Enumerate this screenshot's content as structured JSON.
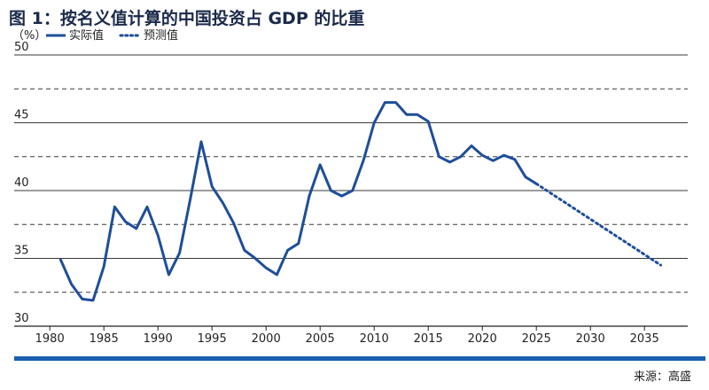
{
  "title": "图 1：按名义值计算的中国投资占 GDP 的比重",
  "unit_label": "（%）",
  "source": "来源：高盛",
  "colors": {
    "series": "#1f4e99",
    "grid_solid": "#3a3a3a",
    "grid_dashed": "#3a3a3a",
    "bottom_bar": "#1b5fb0"
  },
  "chart_data": {
    "type": "line",
    "title": "图 1：按名义值计算的中国投资占 GDP 的比重",
    "ylabel": "（%）",
    "xlabel": "",
    "xlim": [
      1979,
      2039
    ],
    "ylim": [
      30,
      50
    ],
    "y_ticks": [
      30,
      35,
      40,
      45,
      50
    ],
    "y_dashed_lines": [
      32.5,
      37.5,
      42.5,
      47.5
    ],
    "x_ticks": [
      1980,
      1985,
      1990,
      1995,
      2000,
      2005,
      2010,
      2015,
      2020,
      2025,
      2030,
      2035
    ],
    "grid": true,
    "legend_position": "top-left",
    "series": [
      {
        "name": "实际值",
        "style": "solid",
        "x": [
          1981,
          1982,
          1983,
          1984,
          1985,
          1986,
          1987,
          1988,
          1989,
          1990,
          1991,
          1992,
          1993,
          1994,
          1995,
          1996,
          1997,
          1998,
          1999,
          2000,
          2001,
          2002,
          2003,
          2004,
          2005,
          2006,
          2007,
          2008,
          2009,
          2010,
          2011,
          2012,
          2013,
          2014,
          2015,
          2016,
          2017,
          2018,
          2019,
          2020,
          2021,
          2022,
          2023,
          2024,
          2025
        ],
        "y": [
          34.9,
          33.1,
          32.0,
          31.9,
          34.4,
          38.8,
          37.7,
          37.2,
          38.8,
          36.7,
          33.8,
          35.4,
          39.4,
          43.6,
          40.3,
          39.1,
          37.6,
          35.6,
          35.0,
          34.3,
          33.8,
          35.6,
          36.1,
          39.6,
          41.9,
          40.0,
          39.6,
          40.0,
          42.2,
          45.0,
          46.5,
          46.5,
          45.6,
          45.6,
          45.1,
          42.5,
          42.1,
          42.5,
          43.3,
          42.6,
          42.2,
          42.6,
          42.3,
          41.0,
          40.5
        ]
      },
      {
        "name": "预测值",
        "style": "dotted",
        "x": [
          2025,
          2036.5
        ],
        "y": [
          40.5,
          34.5
        ]
      }
    ]
  }
}
